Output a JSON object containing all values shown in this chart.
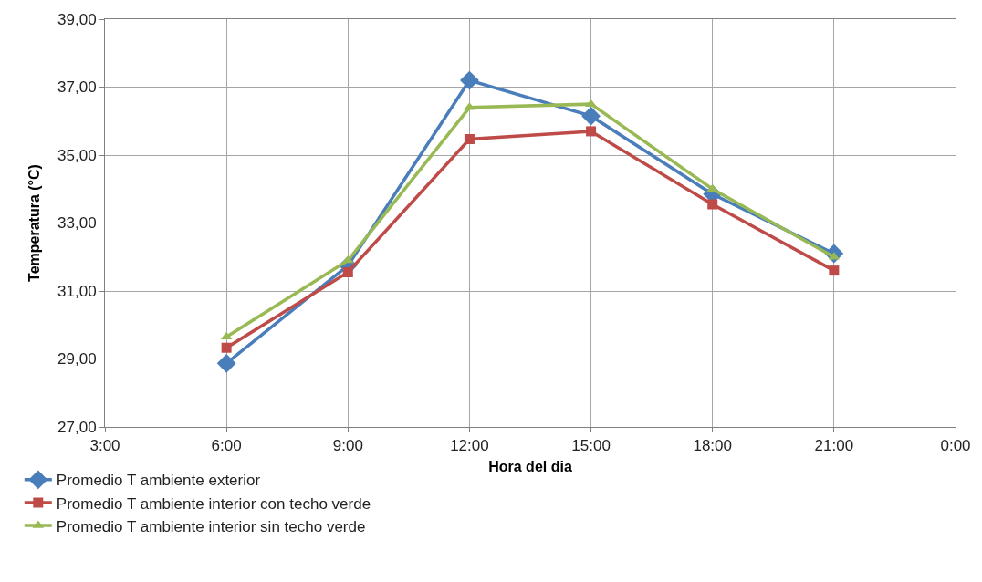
{
  "chart_data": {
    "type": "line",
    "xlabel": "Hora del dia",
    "ylabel": "Temperatura (°C)",
    "x": [
      6,
      9,
      12,
      15,
      18,
      21
    ],
    "xlim": [
      3,
      24
    ],
    "xticks": [
      {
        "value": 3,
        "label": "3:00"
      },
      {
        "value": 6,
        "label": "6:00"
      },
      {
        "value": 9,
        "label": "9:00"
      },
      {
        "value": 12,
        "label": "12:00"
      },
      {
        "value": 15,
        "label": "15:00"
      },
      {
        "value": 18,
        "label": "18:00"
      },
      {
        "value": 21,
        "label": "21:00"
      },
      {
        "value": 24,
        "label": "0:00"
      }
    ],
    "ylim": [
      27,
      39
    ],
    "yticks": [
      {
        "value": 27,
        "label": "27,00"
      },
      {
        "value": 29,
        "label": "29,00"
      },
      {
        "value": 31,
        "label": "31,00"
      },
      {
        "value": 33,
        "label": "33,00"
      },
      {
        "value": 35,
        "label": "35,00"
      },
      {
        "value": 37,
        "label": "37,00"
      },
      {
        "value": 39,
        "label": "39,00"
      }
    ],
    "grid": true,
    "legend": "bottom left",
    "line_style": "solid",
    "series": [
      {
        "name": "Promedio T ambiente exterior",
        "color": "#4a7ebb",
        "marker": "diamond",
        "values": [
          28.87,
          31.75,
          37.2,
          36.15,
          33.85,
          32.1
        ]
      },
      {
        "name": "Promedio T ambiente interior con techo verde",
        "color": "#be4b48",
        "marker": "square",
        "values": [
          29.33,
          31.55,
          35.47,
          35.7,
          33.55,
          31.6
        ]
      },
      {
        "name": "Promedio T ambiente interior sin techo verde",
        "color": "#98b954",
        "marker": "triangle",
        "values": [
          29.65,
          31.9,
          36.4,
          36.5,
          34.0,
          32.0
        ]
      }
    ]
  }
}
